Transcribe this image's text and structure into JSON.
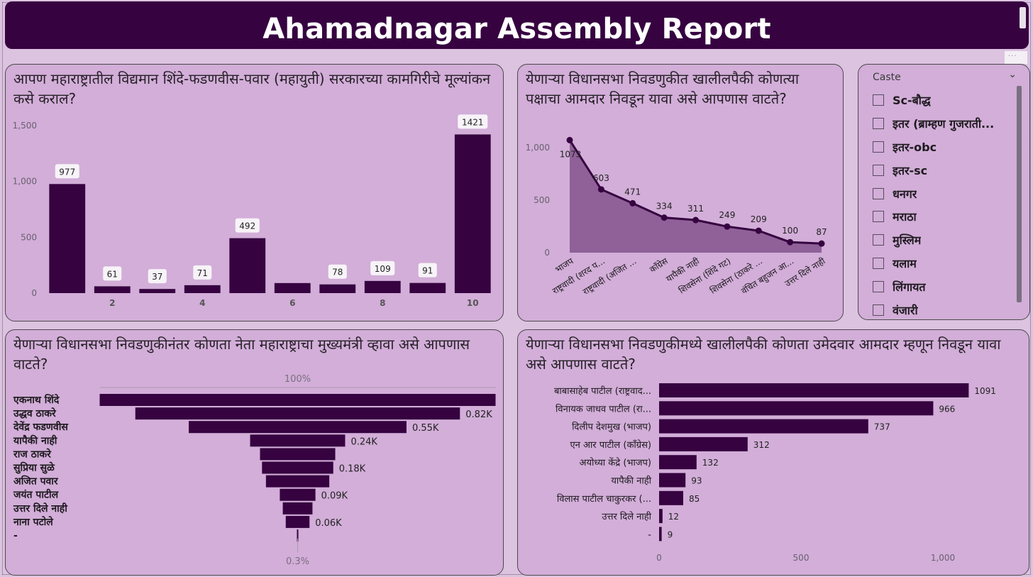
{
  "header": {
    "title": "Ahamadnagar Assembly Report"
  },
  "panels": {
    "rating": {
      "title": "आपण महाराष्ट्रातील विद्यमान शिंदे-फडणवीस-पवार (महायुती) सरकारच्या कामगिरीचे मूल्यांकन कसे कराल?"
    },
    "party": {
      "title": "येणाऱ्या विधानसभा निवडणुकीत खालीलपैकी कोणत्या पक्षाचा आमदार निवडून यावा असे आपणास वाटते?"
    },
    "cm": {
      "title": "येणाऱ्या विधानसभा निवडणुकीनंतर कोणता नेता महाराष्ट्राचा मुख्यमंत्री व्हावा असे आपणास वाटते?"
    },
    "candidate": {
      "title": "येणाऱ्या विधानसभा निवडणुकीमध्ये खालीलपैकी कोणता उमेदवार आमदार म्हणून निवडून यावा असे आपणास वाटते?"
    }
  },
  "slicer": {
    "header": "Caste",
    "items": [
      "Sc-बौद्ध",
      "इतर (ब्राम्हण गुजराती...",
      "इतर-obc",
      "इतर-sc",
      "धनगर",
      "मराठा",
      "मुस्लिम",
      "यलाम",
      "लिंगायत",
      "वंजारी"
    ]
  },
  "colors": {
    "bar": "#360340",
    "area": "#8f6198",
    "line": "#360340",
    "panel": "#d2aed8",
    "header": "#360340"
  },
  "chart_data": [
    {
      "type": "bar",
      "categories": [
        "1",
        "2",
        "3",
        "4",
        "5",
        "6",
        "7",
        "8",
        "9",
        "10"
      ],
      "values": [
        977,
        61,
        37,
        71,
        492,
        90,
        78,
        109,
        91,
        1421
      ],
      "data_labels": [
        "977",
        "61",
        "37",
        "71",
        "492",
        "",
        "78",
        "109",
        "91",
        "1421"
      ],
      "x_tick_labels": [
        "",
        "2",
        "",
        "4",
        "",
        "6",
        "",
        "8",
        "",
        "10"
      ],
      "y_ticks": [
        0,
        500,
        1000,
        1500
      ],
      "y_tick_labels": [
        "0",
        "500",
        "1,000",
        "1,500"
      ],
      "ylim": [
        0,
        1500
      ]
    },
    {
      "type": "area",
      "categories": [
        "भाजप",
        "राष्ट्रवादी (शरद प...",
        "राष्ट्रवादी (अजित ...",
        "काँग्रेस",
        "यापैकी नाही",
        "शिवसेना (शिंदे गट)",
        "शिवसेना (ठाकरे ...",
        "वंचित बहुजन आ...",
        "उत्तर दिले नाही"
      ],
      "values": [
        1073,
        603,
        471,
        334,
        311,
        249,
        209,
        100,
        87
      ],
      "data_labels": [
        "1073",
        "603",
        "471",
        "334",
        "311",
        "249",
        "209",
        "100",
        "87"
      ],
      "y_ticks": [
        0,
        500,
        1000
      ],
      "y_tick_labels": [
        "0",
        "500",
        "1,000"
      ],
      "ylim": [
        0,
        1150
      ]
    },
    {
      "type": "funnel",
      "categories": [
        "एकनाथ शिंदे",
        "उद्धव ठाकरे",
        "देवेंद्र फडणवीस",
        "यापैकी नाही",
        "राज ठाकरे",
        "सुप्रिया सुळे",
        "अजित पवार",
        "जयंत पाटील",
        "उत्तर दिले नाही",
        "नाना पटोले",
        "-"
      ],
      "values": [
        1000,
        820,
        550,
        240,
        190,
        180,
        160,
        90,
        75,
        60,
        3
      ],
      "data_labels": [
        "",
        "0.82K",
        "0.55K",
        "0.24K",
        "",
        "0.18K",
        "",
        "0.09K",
        "",
        "0.06K",
        ""
      ],
      "top_label": "100%",
      "bottom_label": "0.3%"
    },
    {
      "type": "bar",
      "orientation": "horizontal",
      "categories": [
        "बाबासाहेब पाटील (राष्ट्रवाद...",
        "विनायक जाधव पाटील (रा...",
        "दिलीप देशमुख (भाजप)",
        "एन आर पाटील (कॉंग्रेस)",
        "अयोध्या केंद्रे (भाजप)",
        "यापैकी नाही",
        "विलास पाटील चाकुरकर (...",
        "उत्तर दिले नाही",
        "-"
      ],
      "values": [
        1091,
        966,
        737,
        312,
        132,
        93,
        85,
        12,
        9
      ],
      "data_labels": [
        "1091",
        "966",
        "737",
        "312",
        "132",
        "93",
        "85",
        "12",
        "9"
      ],
      "x_ticks": [
        0,
        500,
        1000
      ],
      "x_tick_labels": [
        "0",
        "500",
        "1,000"
      ],
      "xlim": [
        0,
        1250
      ]
    }
  ]
}
